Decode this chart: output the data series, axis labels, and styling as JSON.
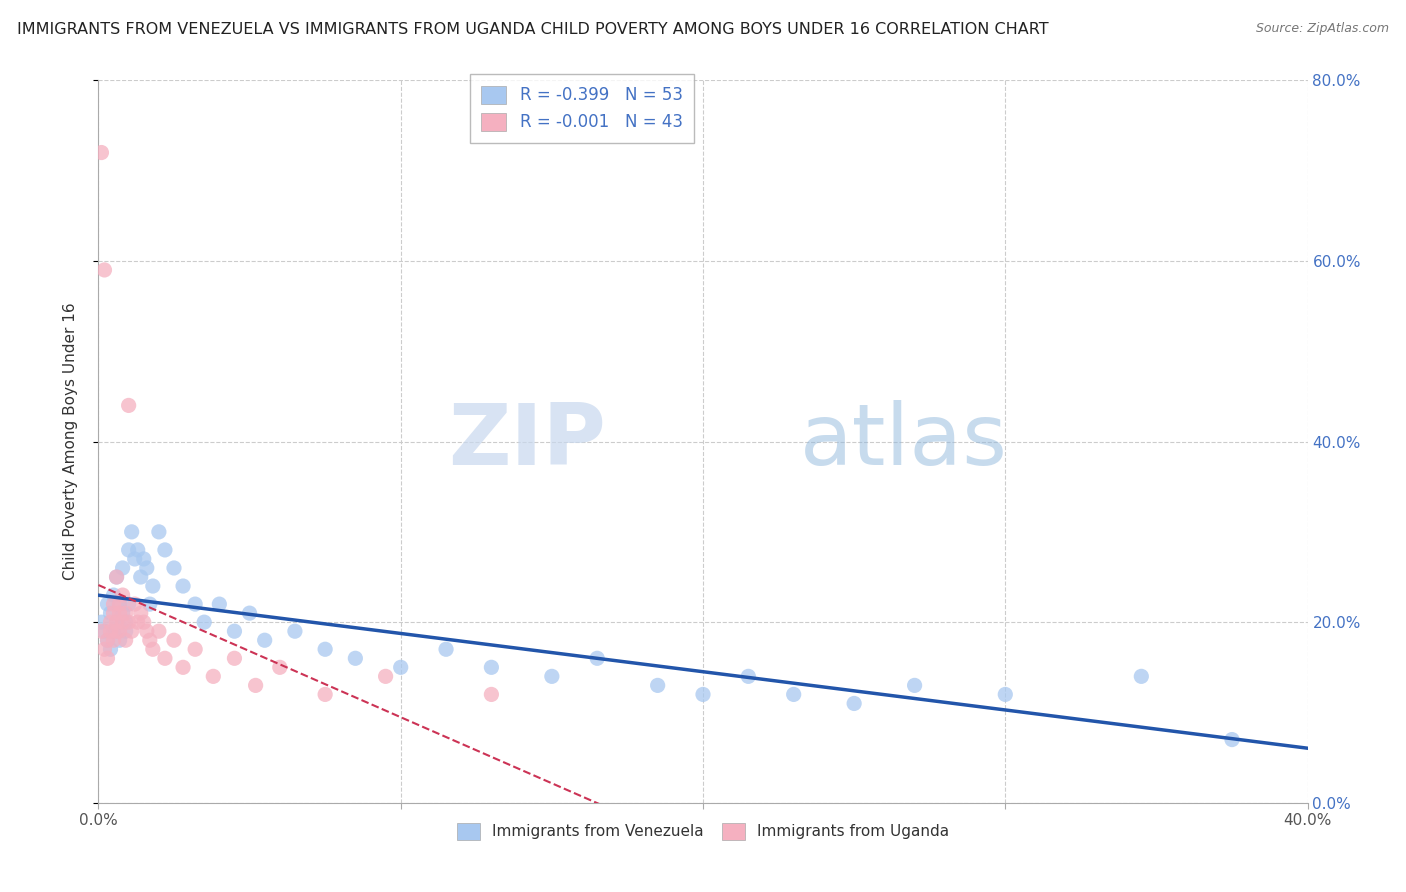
{
  "title": "IMMIGRANTS FROM VENEZUELA VS IMMIGRANTS FROM UGANDA CHILD POVERTY AMONG BOYS UNDER 16 CORRELATION CHART",
  "source": "Source: ZipAtlas.com",
  "ylabel": "Child Poverty Among Boys Under 16",
  "xlim": [
    0.0,
    0.4
  ],
  "ylim": [
    0.0,
    0.8
  ],
  "xticks": [
    0.0,
    0.1,
    0.2,
    0.3,
    0.4
  ],
  "yticks": [
    0.0,
    0.2,
    0.4,
    0.6,
    0.8
  ],
  "venezuela_color": "#a8c8f0",
  "uganda_color": "#f5b0c0",
  "trend_venezuela_color": "#2255aa",
  "trend_uganda_color": "#cc3355",
  "legend_label_venezuela": "Immigrants from Venezuela",
  "legend_label_uganda": "Immigrants from Uganda",
  "R_venezuela": -0.399,
  "N_venezuela": 53,
  "R_uganda": -0.001,
  "N_uganda": 43,
  "watermark_zip": "ZIP",
  "watermark_atlas": "atlas",
  "background_color": "#ffffff",
  "grid_color": "#cccccc",
  "venezuela_x": [
    0.001,
    0.002,
    0.003,
    0.003,
    0.004,
    0.004,
    0.005,
    0.005,
    0.006,
    0.006,
    0.007,
    0.007,
    0.008,
    0.008,
    0.009,
    0.009,
    0.01,
    0.01,
    0.011,
    0.012,
    0.013,
    0.014,
    0.015,
    0.016,
    0.017,
    0.018,
    0.02,
    0.022,
    0.025,
    0.028,
    0.032,
    0.035,
    0.04,
    0.045,
    0.05,
    0.055,
    0.065,
    0.075,
    0.085,
    0.1,
    0.115,
    0.13,
    0.15,
    0.165,
    0.185,
    0.2,
    0.215,
    0.23,
    0.25,
    0.27,
    0.3,
    0.345,
    0.375
  ],
  "venezuela_y": [
    0.2,
    0.19,
    0.22,
    0.18,
    0.21,
    0.17,
    0.23,
    0.19,
    0.25,
    0.2,
    0.22,
    0.18,
    0.26,
    0.21,
    0.2,
    0.19,
    0.28,
    0.22,
    0.3,
    0.27,
    0.28,
    0.25,
    0.27,
    0.26,
    0.22,
    0.24,
    0.3,
    0.28,
    0.26,
    0.24,
    0.22,
    0.2,
    0.22,
    0.19,
    0.21,
    0.18,
    0.19,
    0.17,
    0.16,
    0.15,
    0.17,
    0.15,
    0.14,
    0.16,
    0.13,
    0.12,
    0.14,
    0.12,
    0.11,
    0.13,
    0.12,
    0.14,
    0.07
  ],
  "uganda_x": [
    0.001,
    0.001,
    0.002,
    0.002,
    0.003,
    0.003,
    0.004,
    0.004,
    0.005,
    0.005,
    0.005,
    0.006,
    0.006,
    0.006,
    0.007,
    0.007,
    0.007,
    0.008,
    0.008,
    0.009,
    0.009,
    0.01,
    0.01,
    0.011,
    0.012,
    0.013,
    0.014,
    0.015,
    0.016,
    0.017,
    0.018,
    0.02,
    0.022,
    0.025,
    0.028,
    0.032,
    0.038,
    0.045,
    0.052,
    0.06,
    0.075,
    0.095,
    0.13
  ],
  "uganda_y": [
    0.72,
    0.19,
    0.59,
    0.17,
    0.18,
    0.16,
    0.2,
    0.19,
    0.21,
    0.18,
    0.22,
    0.25,
    0.2,
    0.19,
    0.21,
    0.22,
    0.19,
    0.23,
    0.2,
    0.21,
    0.18,
    0.44,
    0.2,
    0.19,
    0.22,
    0.2,
    0.21,
    0.2,
    0.19,
    0.18,
    0.17,
    0.19,
    0.16,
    0.18,
    0.15,
    0.17,
    0.14,
    0.16,
    0.13,
    0.15,
    0.12,
    0.14,
    0.12
  ]
}
